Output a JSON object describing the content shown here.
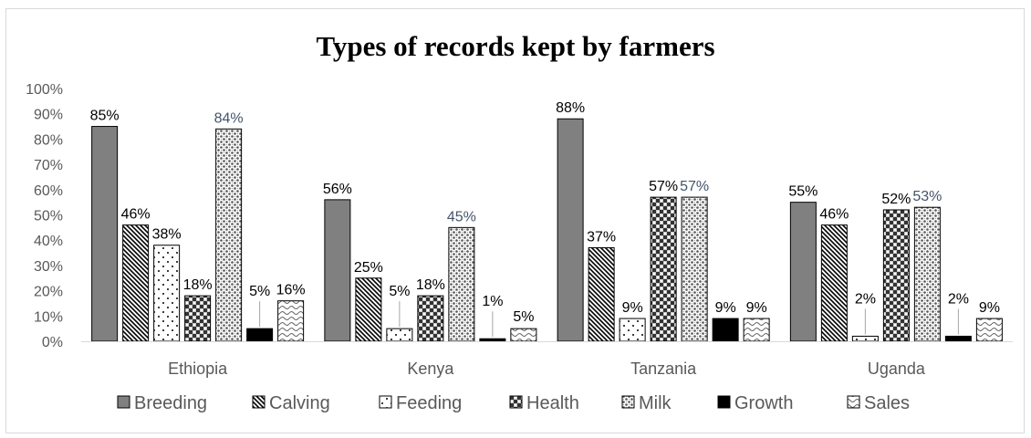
{
  "chart_data": {
    "type": "bar",
    "title": "Types of records kept by farmers",
    "categories": [
      "Ethiopia",
      "Kenya",
      "Tanzania",
      "Uganda"
    ],
    "ylim": [
      0,
      100
    ],
    "ytick_labels": [
      "0%",
      "10%",
      "20%",
      "30%",
      "40%",
      "50%",
      "60%",
      "70%",
      "80%",
      "90%",
      "100%"
    ],
    "grid": false,
    "legend_position": "bottom",
    "series": [
      {
        "name": "Breeding",
        "pattern": "solid-gray",
        "values": [
          85,
          56,
          88,
          55
        ],
        "labels": [
          "85%",
          "56%",
          "88%",
          "55%"
        ]
      },
      {
        "name": "Calving",
        "pattern": "diagonal-stripes",
        "values": [
          46,
          25,
          37,
          46
        ],
        "labels": [
          "46%",
          "25%",
          "37%",
          "46%"
        ]
      },
      {
        "name": "Feeding",
        "pattern": "sparse-dots",
        "values": [
          38,
          5,
          9,
          2
        ],
        "labels": [
          "38%",
          "5%",
          "9%",
          "2%"
        ]
      },
      {
        "name": "Health",
        "pattern": "large-checker",
        "values": [
          18,
          18,
          57,
          52
        ],
        "labels": [
          "18%",
          "18%",
          "57%",
          "52%"
        ]
      },
      {
        "name": "Milk",
        "pattern": "small-checker",
        "values": [
          84,
          45,
          57,
          53
        ],
        "labels": [
          "84%",
          "45%",
          "57%",
          "53%"
        ]
      },
      {
        "name": "Growth",
        "pattern": "solid-black",
        "values": [
          5,
          1,
          9,
          2
        ],
        "labels": [
          "5%",
          "1%",
          "9%",
          "2%"
        ]
      },
      {
        "name": "Sales",
        "pattern": "wave",
        "values": [
          16,
          5,
          9,
          9
        ],
        "labels": [
          "16%",
          "5%",
          "9%",
          "9%"
        ]
      }
    ],
    "colors": {
      "breeding": "#808080",
      "growth": "#000000",
      "outline": "#000000",
      "axis": "#d9d9d9",
      "text": "#595959",
      "milk_label": "#44546a"
    }
  }
}
